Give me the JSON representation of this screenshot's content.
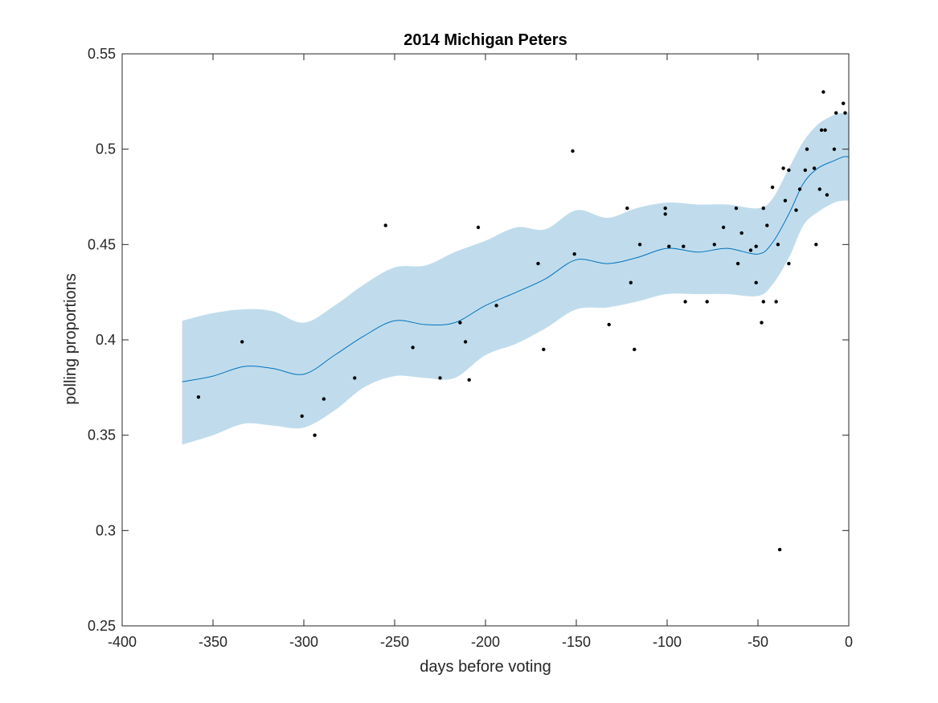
{
  "chart_data": {
    "type": "scatter",
    "title": "2014 Michigan Peters",
    "xlabel": "days before voting",
    "ylabel": "polling proportions",
    "xlim": [
      -400,
      0
    ],
    "ylim": [
      0.25,
      0.55
    ],
    "xticks": [
      -400,
      -350,
      -300,
      -250,
      -200,
      -150,
      -100,
      -50,
      0
    ],
    "yticks": [
      0.25,
      0.3,
      0.35,
      0.4,
      0.45,
      0.5,
      0.55
    ],
    "xtick_labels": [
      "-400",
      "-350",
      "-300",
      "-250",
      "-200",
      "-150",
      "-100",
      "-50",
      "0"
    ],
    "ytick_labels": [
      "0.25",
      "0.3",
      "0.35",
      "0.4",
      "0.45",
      "0.5",
      "0.55"
    ],
    "grid": false,
    "colors": {
      "band": "#c0dcec",
      "line": "#0072bd",
      "points": "#000000",
      "axes": "#262626"
    },
    "trend": {
      "x": [
        -367,
        -350,
        -333,
        -317,
        -300,
        -283,
        -267,
        -250,
        -233,
        -217,
        -200,
        -183,
        -167,
        -150,
        -133,
        -117,
        -100,
        -83,
        -67,
        -50,
        -42,
        -33,
        -25,
        -17,
        -8,
        -3,
        0
      ],
      "y": [
        0.378,
        0.381,
        0.386,
        0.385,
        0.382,
        0.392,
        0.402,
        0.41,
        0.408,
        0.409,
        0.418,
        0.425,
        0.432,
        0.442,
        0.44,
        0.443,
        0.448,
        0.446,
        0.448,
        0.445,
        0.451,
        0.466,
        0.482,
        0.49,
        0.494,
        0.496,
        0.496
      ]
    },
    "band_upper": [
      0.41,
      0.414,
      0.416,
      0.415,
      0.409,
      0.418,
      0.429,
      0.438,
      0.439,
      0.446,
      0.452,
      0.459,
      0.458,
      0.468,
      0.464,
      0.469,
      0.472,
      0.471,
      0.471,
      0.469,
      0.474,
      0.49,
      0.504,
      0.513,
      0.518,
      0.519,
      0.519
    ],
    "band_lower": [
      0.345,
      0.35,
      0.356,
      0.355,
      0.354,
      0.363,
      0.375,
      0.381,
      0.38,
      0.38,
      0.392,
      0.398,
      0.406,
      0.416,
      0.417,
      0.42,
      0.424,
      0.424,
      0.424,
      0.423,
      0.429,
      0.443,
      0.46,
      0.467,
      0.472,
      0.473,
      0.473
    ],
    "points": [
      [
        -358,
        0.37
      ],
      [
        -334,
        0.399
      ],
      [
        -301,
        0.36
      ],
      [
        -294,
        0.35
      ],
      [
        -289,
        0.369
      ],
      [
        -272,
        0.38
      ],
      [
        -255,
        0.46
      ],
      [
        -240,
        0.396
      ],
      [
        -225,
        0.38
      ],
      [
        -214,
        0.409
      ],
      [
        -211,
        0.399
      ],
      [
        -209,
        0.379
      ],
      [
        -204,
        0.459
      ],
      [
        -194,
        0.418
      ],
      [
        -171,
        0.44
      ],
      [
        -168,
        0.395
      ],
      [
        -152,
        0.499
      ],
      [
        -151,
        0.445
      ],
      [
        -132,
        0.408
      ],
      [
        -122,
        0.469
      ],
      [
        -120,
        0.43
      ],
      [
        -118,
        0.395
      ],
      [
        -115,
        0.45
      ],
      [
        -101,
        0.469
      ],
      [
        -101,
        0.466
      ],
      [
        -99,
        0.449
      ],
      [
        -91,
        0.449
      ],
      [
        -90,
        0.42
      ],
      [
        -78,
        0.42
      ],
      [
        -74,
        0.45
      ],
      [
        -69,
        0.459
      ],
      [
        -62,
        0.469
      ],
      [
        -61,
        0.44
      ],
      [
        -59,
        0.456
      ],
      [
        -54,
        0.447
      ],
      [
        -51,
        0.449
      ],
      [
        -51,
        0.43
      ],
      [
        -48,
        0.409
      ],
      [
        -47,
        0.42
      ],
      [
        -47,
        0.469
      ],
      [
        -45,
        0.46
      ],
      [
        -42,
        0.48
      ],
      [
        -40,
        0.42
      ],
      [
        -39,
        0.45
      ],
      [
        -38,
        0.29
      ],
      [
        -36,
        0.49
      ],
      [
        -35,
        0.473
      ],
      [
        -33,
        0.489
      ],
      [
        -33,
        0.44
      ],
      [
        -29,
        0.468
      ],
      [
        -27,
        0.479
      ],
      [
        -24,
        0.489
      ],
      [
        -23,
        0.5
      ],
      [
        -19,
        0.49
      ],
      [
        -18,
        0.45
      ],
      [
        -16,
        0.479
      ],
      [
        -15,
        0.51
      ],
      [
        -14,
        0.53
      ],
      [
        -13,
        0.51
      ],
      [
        -12,
        0.476
      ],
      [
        -8,
        0.5
      ],
      [
        -7,
        0.519
      ],
      [
        -3,
        0.524
      ],
      [
        -2,
        0.519
      ]
    ]
  }
}
